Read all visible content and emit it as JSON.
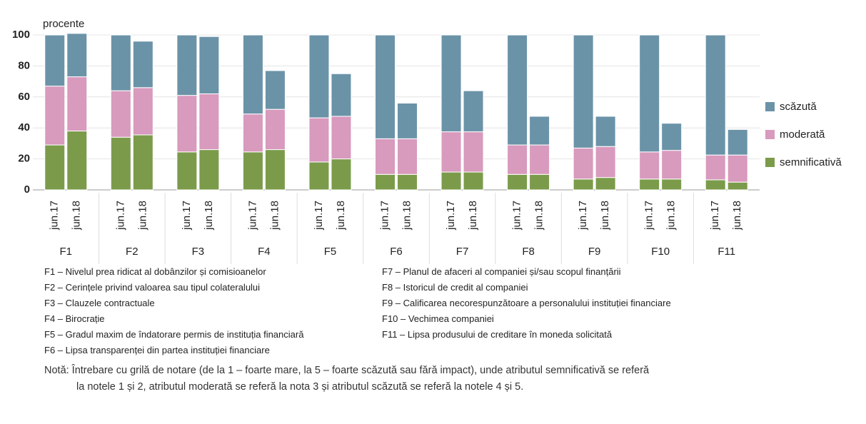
{
  "chart_data": {
    "type": "stacked_bar",
    "ylabel": "procente",
    "categories": [
      "jun.17",
      "jun.18",
      "jun.17",
      "jun.18",
      "jun.17",
      "jun.18",
      "jun.17",
      "jun.18",
      "jun.17",
      "jun.18",
      "jun.17",
      "jun.18",
      "jun.17",
      "jun.18",
      "jun.17",
      "jun.18",
      "jun.17",
      "jun.18",
      "jun.17",
      "jun.18",
      "jun.17",
      "jun.18"
    ],
    "groups": [
      "F1",
      "F2",
      "F3",
      "F4",
      "F5",
      "F6",
      "F7",
      "F8",
      "F9",
      "F10",
      "F11"
    ],
    "series": [
      {
        "name": "semnificativă",
        "color": "#7b9b4b",
        "values": [
          29,
          38,
          34,
          35.5,
          24.5,
          26,
          24.5,
          26,
          18,
          20,
          10,
          10,
          11.5,
          11.5,
          10,
          10,
          7,
          8,
          7,
          7,
          6.5,
          5
        ]
      },
      {
        "name": "moderată",
        "color": "#d89abd",
        "values": [
          38,
          35,
          30,
          30.5,
          36.5,
          36,
          24.5,
          26,
          28.5,
          27.5,
          23,
          23,
          26,
          26,
          19,
          19,
          20,
          20,
          17.5,
          18.5,
          16,
          17.5
        ]
      },
      {
        "name": "scăzută",
        "color": "#6b93a8",
        "values": [
          33,
          28,
          36,
          30,
          39,
          37,
          51,
          25,
          53.5,
          27.5,
          67,
          23,
          62.5,
          26.5,
          71,
          18.5,
          73,
          19.5,
          75.5,
          17.5,
          77.5,
          16.5
        ]
      }
    ],
    "ylim": [
      0,
      100
    ],
    "yticks": [
      0,
      20,
      40,
      60,
      80,
      100
    ],
    "grid": true,
    "footnotes_left": [
      "F1 – Nivelul prea ridicat al dobânzilor și comisioanelor",
      "F2 – Cerințele privind valoarea sau tipul colateralului",
      "F3 – Clauzele contractuale",
      "F4 – Birocrație",
      "F5 – Gradul maxim de îndatorare permis de instituția financiară",
      "F6 – Lipsa transparenței din partea instituției  financiare"
    ],
    "footnotes_right": [
      "F7 – Planul de afaceri al companiei și/sau scopul finanțării",
      "F8 – Istoricul de credit al companiei",
      "F9 – Calificarea necorespunzătoare a personalului instituției financiare",
      "F10 – Vechimea companiei",
      "F11 – Lipsa produsului de creditare în moneda solicitată"
    ],
    "note": [
      "Notă: Întrebare cu grilă de notare (de la 1 – foarte mare, la 5 – foarte scăzută sau fără impact), unde atributul semnificativă se referă",
      "la notele 1 și 2, atributul moderată se referă la nota 3 și atributul scăzută se referă la notele 4 și 5."
    ]
  }
}
